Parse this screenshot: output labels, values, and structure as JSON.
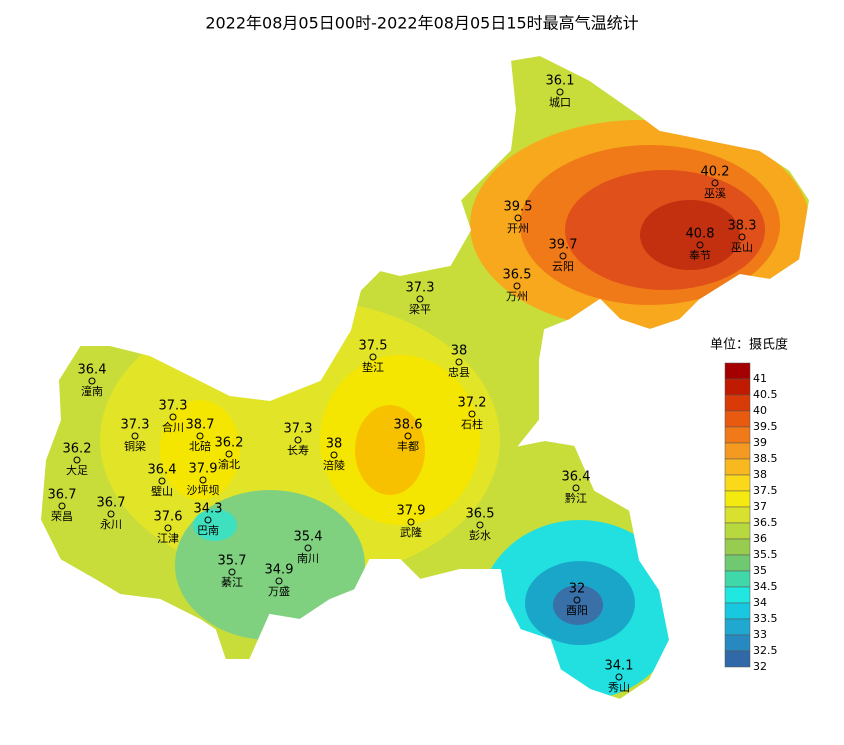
{
  "title": "2022年08月05日00时-2022年08月05日15时最高气温统计",
  "stations": [
    {
      "value": 36.1,
      "name": "城口"
    },
    {
      "value": 40.2,
      "name": "巫溪"
    },
    {
      "value": 39.5,
      "name": "开州"
    },
    {
      "value": 38.3,
      "name": "巫山"
    },
    {
      "value": 40.8,
      "name": "奉节"
    },
    {
      "value": 39.7,
      "name": "云阳"
    },
    {
      "value": 36.5,
      "name": "万州"
    },
    {
      "value": 37.3,
      "name": "梁平"
    },
    {
      "value": 37.5,
      "name": "垫江"
    },
    {
      "value": 38,
      "name": "忠县"
    },
    {
      "value": 36.4,
      "name": "潼南"
    },
    {
      "value": 37.3,
      "name": "合川"
    },
    {
      "value": 37.3,
      "name": "铜梁"
    },
    {
      "value": 38.7,
      "name": "北碚"
    },
    {
      "value": 37.2,
      "name": "石柱"
    },
    {
      "value": 37.3,
      "name": "长寿"
    },
    {
      "value": 38.6,
      "name": "丰都"
    },
    {
      "value": 36.2,
      "name": "渝北"
    },
    {
      "value": 38,
      "name": "涪陵"
    },
    {
      "value": 36.2,
      "name": "大足"
    },
    {
      "value": 36.4,
      "name": "璧山"
    },
    {
      "value": 37.9,
      "name": "沙坪坝"
    },
    {
      "value": 36.4,
      "name": "黔江"
    },
    {
      "value": 36.7,
      "name": "荣昌"
    },
    {
      "value": 36.7,
      "name": "永川"
    },
    {
      "value": 34.3,
      "name": "巴南"
    },
    {
      "value": 37.6,
      "name": "江津"
    },
    {
      "value": 37.9,
      "name": "武隆"
    },
    {
      "value": 36.5,
      "name": "彭水"
    },
    {
      "value": 35.4,
      "name": "南川"
    },
    {
      "value": 35.7,
      "name": "綦江"
    },
    {
      "value": 34.9,
      "name": "万盛"
    },
    {
      "value": 32,
      "name": "酉阳"
    },
    {
      "value": 34.1,
      "name": "秀山"
    }
  ],
  "legend": {
    "title": "单位：摄氏度",
    "levels": [
      41,
      40.5,
      40,
      39.5,
      39,
      38.5,
      38,
      37.5,
      37,
      36.5,
      36,
      35.5,
      35,
      34.5,
      34,
      33.5,
      33,
      32.5,
      32
    ],
    "colors": [
      "#a50000",
      "#c01a00",
      "#d83a08",
      "#e85a10",
      "#f07a18",
      "#f59a20",
      "#f8b820",
      "#fad81a",
      "#f4ea10",
      "#d8e030",
      "#b8d840",
      "#98cc50",
      "#70c870",
      "#40d8a8",
      "#20e8e0",
      "#18c8e0",
      "#20a8d0",
      "#2888c0",
      "#3068a8"
    ]
  }
}
